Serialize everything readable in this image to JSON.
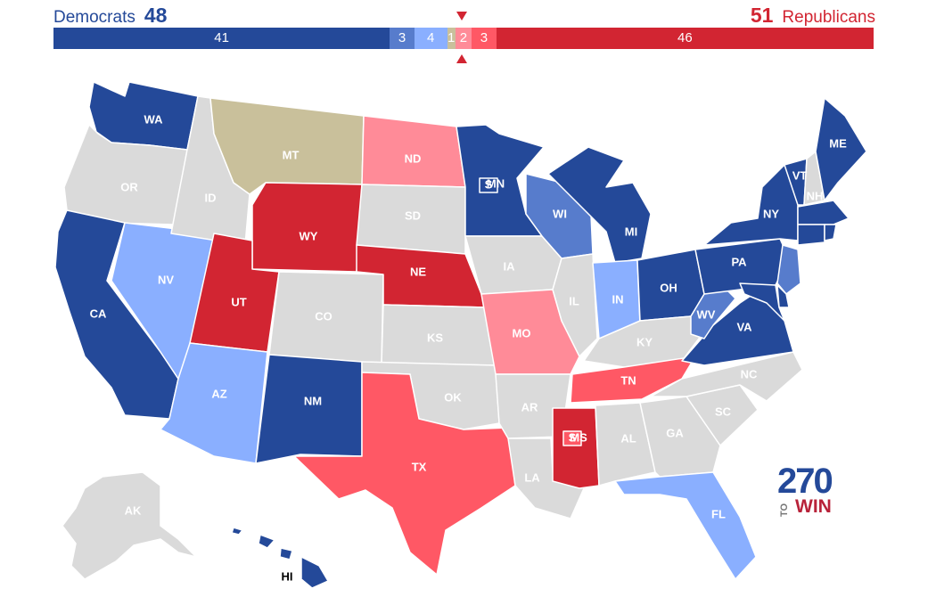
{
  "header": {
    "dem_label": "Democrats",
    "dem_total": "48",
    "rep_total": "51",
    "rep_label": "Republicans"
  },
  "seat_bar": [
    {
      "label": "41",
      "seats": 41,
      "rating": "safe-dem",
      "color": "#244999"
    },
    {
      "label": "3",
      "seats": 3,
      "rating": "likely-dem",
      "color": "#577ccc"
    },
    {
      "label": "4",
      "seats": 4,
      "rating": "leans-dem",
      "color": "#8aafff"
    },
    {
      "label": "1",
      "seats": 1,
      "rating": "independent",
      "color": "#c9c09b"
    },
    {
      "label": "2",
      "seats": 2,
      "rating": "leans-rep",
      "color": "#ff8b98"
    },
    {
      "label": "3",
      "seats": 3,
      "rating": "likely-rep",
      "color": "#ff5865"
    },
    {
      "label": "46",
      "seats": 46,
      "rating": "safe-rep",
      "color": "#d22532"
    }
  ],
  "colors": {
    "safe-dem": "#244999",
    "likely-dem": "#577ccc",
    "leans-dem": "#8aafff",
    "independent": "#c9c09b",
    "leans-rep": "#ff8b98",
    "likely-rep": "#ff5865",
    "safe-rep": "#d22532",
    "no-race": "#dadada"
  },
  "states": [
    {
      "abbr": "WA",
      "rating": "safe-dem"
    },
    {
      "abbr": "OR",
      "rating": "no-race"
    },
    {
      "abbr": "CA",
      "rating": "safe-dem"
    },
    {
      "abbr": "NV",
      "rating": "leans-dem"
    },
    {
      "abbr": "ID",
      "rating": "no-race"
    },
    {
      "abbr": "MT",
      "rating": "independent"
    },
    {
      "abbr": "WY",
      "rating": "safe-rep"
    },
    {
      "abbr": "UT",
      "rating": "safe-rep"
    },
    {
      "abbr": "AZ",
      "rating": "leans-dem"
    },
    {
      "abbr": "CO",
      "rating": "no-race"
    },
    {
      "abbr": "NM",
      "rating": "safe-dem"
    },
    {
      "abbr": "ND",
      "rating": "leans-rep"
    },
    {
      "abbr": "SD",
      "rating": "no-race"
    },
    {
      "abbr": "NE",
      "rating": "safe-rep"
    },
    {
      "abbr": "KS",
      "rating": "no-race"
    },
    {
      "abbr": "OK",
      "rating": "no-race"
    },
    {
      "abbr": "TX",
      "rating": "likely-rep"
    },
    {
      "abbr": "MN",
      "rating": "safe-dem"
    },
    {
      "abbr": "IA",
      "rating": "no-race"
    },
    {
      "abbr": "MO",
      "rating": "leans-rep"
    },
    {
      "abbr": "AR",
      "rating": "no-race"
    },
    {
      "abbr": "LA",
      "rating": "no-race"
    },
    {
      "abbr": "WI",
      "rating": "likely-dem"
    },
    {
      "abbr": "IL",
      "rating": "no-race"
    },
    {
      "abbr": "MI",
      "rating": "safe-dem"
    },
    {
      "abbr": "IN",
      "rating": "leans-dem"
    },
    {
      "abbr": "OH",
      "rating": "safe-dem"
    },
    {
      "abbr": "KY",
      "rating": "no-race"
    },
    {
      "abbr": "TN",
      "rating": "likely-rep"
    },
    {
      "abbr": "MS",
      "rating": "safe-rep"
    },
    {
      "abbr": "AL",
      "rating": "no-race"
    },
    {
      "abbr": "GA",
      "rating": "no-race"
    },
    {
      "abbr": "FL",
      "rating": "leans-dem"
    },
    {
      "abbr": "SC",
      "rating": "no-race"
    },
    {
      "abbr": "NC",
      "rating": "no-race"
    },
    {
      "abbr": "VA",
      "rating": "safe-dem"
    },
    {
      "abbr": "WV",
      "rating": "likely-dem"
    },
    {
      "abbr": "PA",
      "rating": "safe-dem"
    },
    {
      "abbr": "NY",
      "rating": "safe-dem"
    },
    {
      "abbr": "VT",
      "rating": "safe-dem"
    },
    {
      "abbr": "NH",
      "rating": "no-race"
    },
    {
      "abbr": "ME",
      "rating": "safe-dem"
    },
    {
      "abbr": "MA",
      "rating": "safe-dem"
    },
    {
      "abbr": "CT",
      "rating": "safe-dem"
    },
    {
      "abbr": "RI",
      "rating": "safe-dem"
    },
    {
      "abbr": "NJ",
      "rating": "likely-dem"
    },
    {
      "abbr": "DE",
      "rating": "safe-dem"
    },
    {
      "abbr": "MD",
      "rating": "safe-dem"
    },
    {
      "abbr": "AK",
      "rating": "no-race"
    },
    {
      "abbr": "HI",
      "rating": "safe-dem"
    },
    {
      "abbr": "MN-special",
      "rating": "safe-dem"
    },
    {
      "abbr": "MS-special",
      "rating": "likely-rep"
    }
  ],
  "labels": {
    "WA": "WA",
    "OR": "OR",
    "CA": "CA",
    "NV": "NV",
    "ID": "ID",
    "MT": "MT",
    "WY": "WY",
    "UT": "UT",
    "AZ": "AZ",
    "CO": "CO",
    "NM": "NM",
    "ND": "ND",
    "SD": "SD",
    "NE": "NE",
    "KS": "KS",
    "OK": "OK",
    "TX": "TX",
    "MN": "MN",
    "IA": "IA",
    "MO": "MO",
    "AR": "AR",
    "LA": "LA",
    "WI": "WI",
    "IL": "IL",
    "MI": "MI",
    "IN": "IN",
    "OH": "OH",
    "KY": "KY",
    "TN": "TN",
    "MS": "MS",
    "AL": "AL",
    "GA": "GA",
    "FL": "FL",
    "SC": "SC",
    "NC": "NC",
    "VA": "VA",
    "WV": "WV",
    "PA": "PA",
    "NY": "NY",
    "VT": "VT",
    "NH": "NH",
    "ME": "ME",
    "AK": "AK",
    "HI": "HI",
    "MN_special": "S",
    "MS_special": "S"
  },
  "logo": {
    "number": "270",
    "to": "TO",
    "win": "WIN"
  }
}
